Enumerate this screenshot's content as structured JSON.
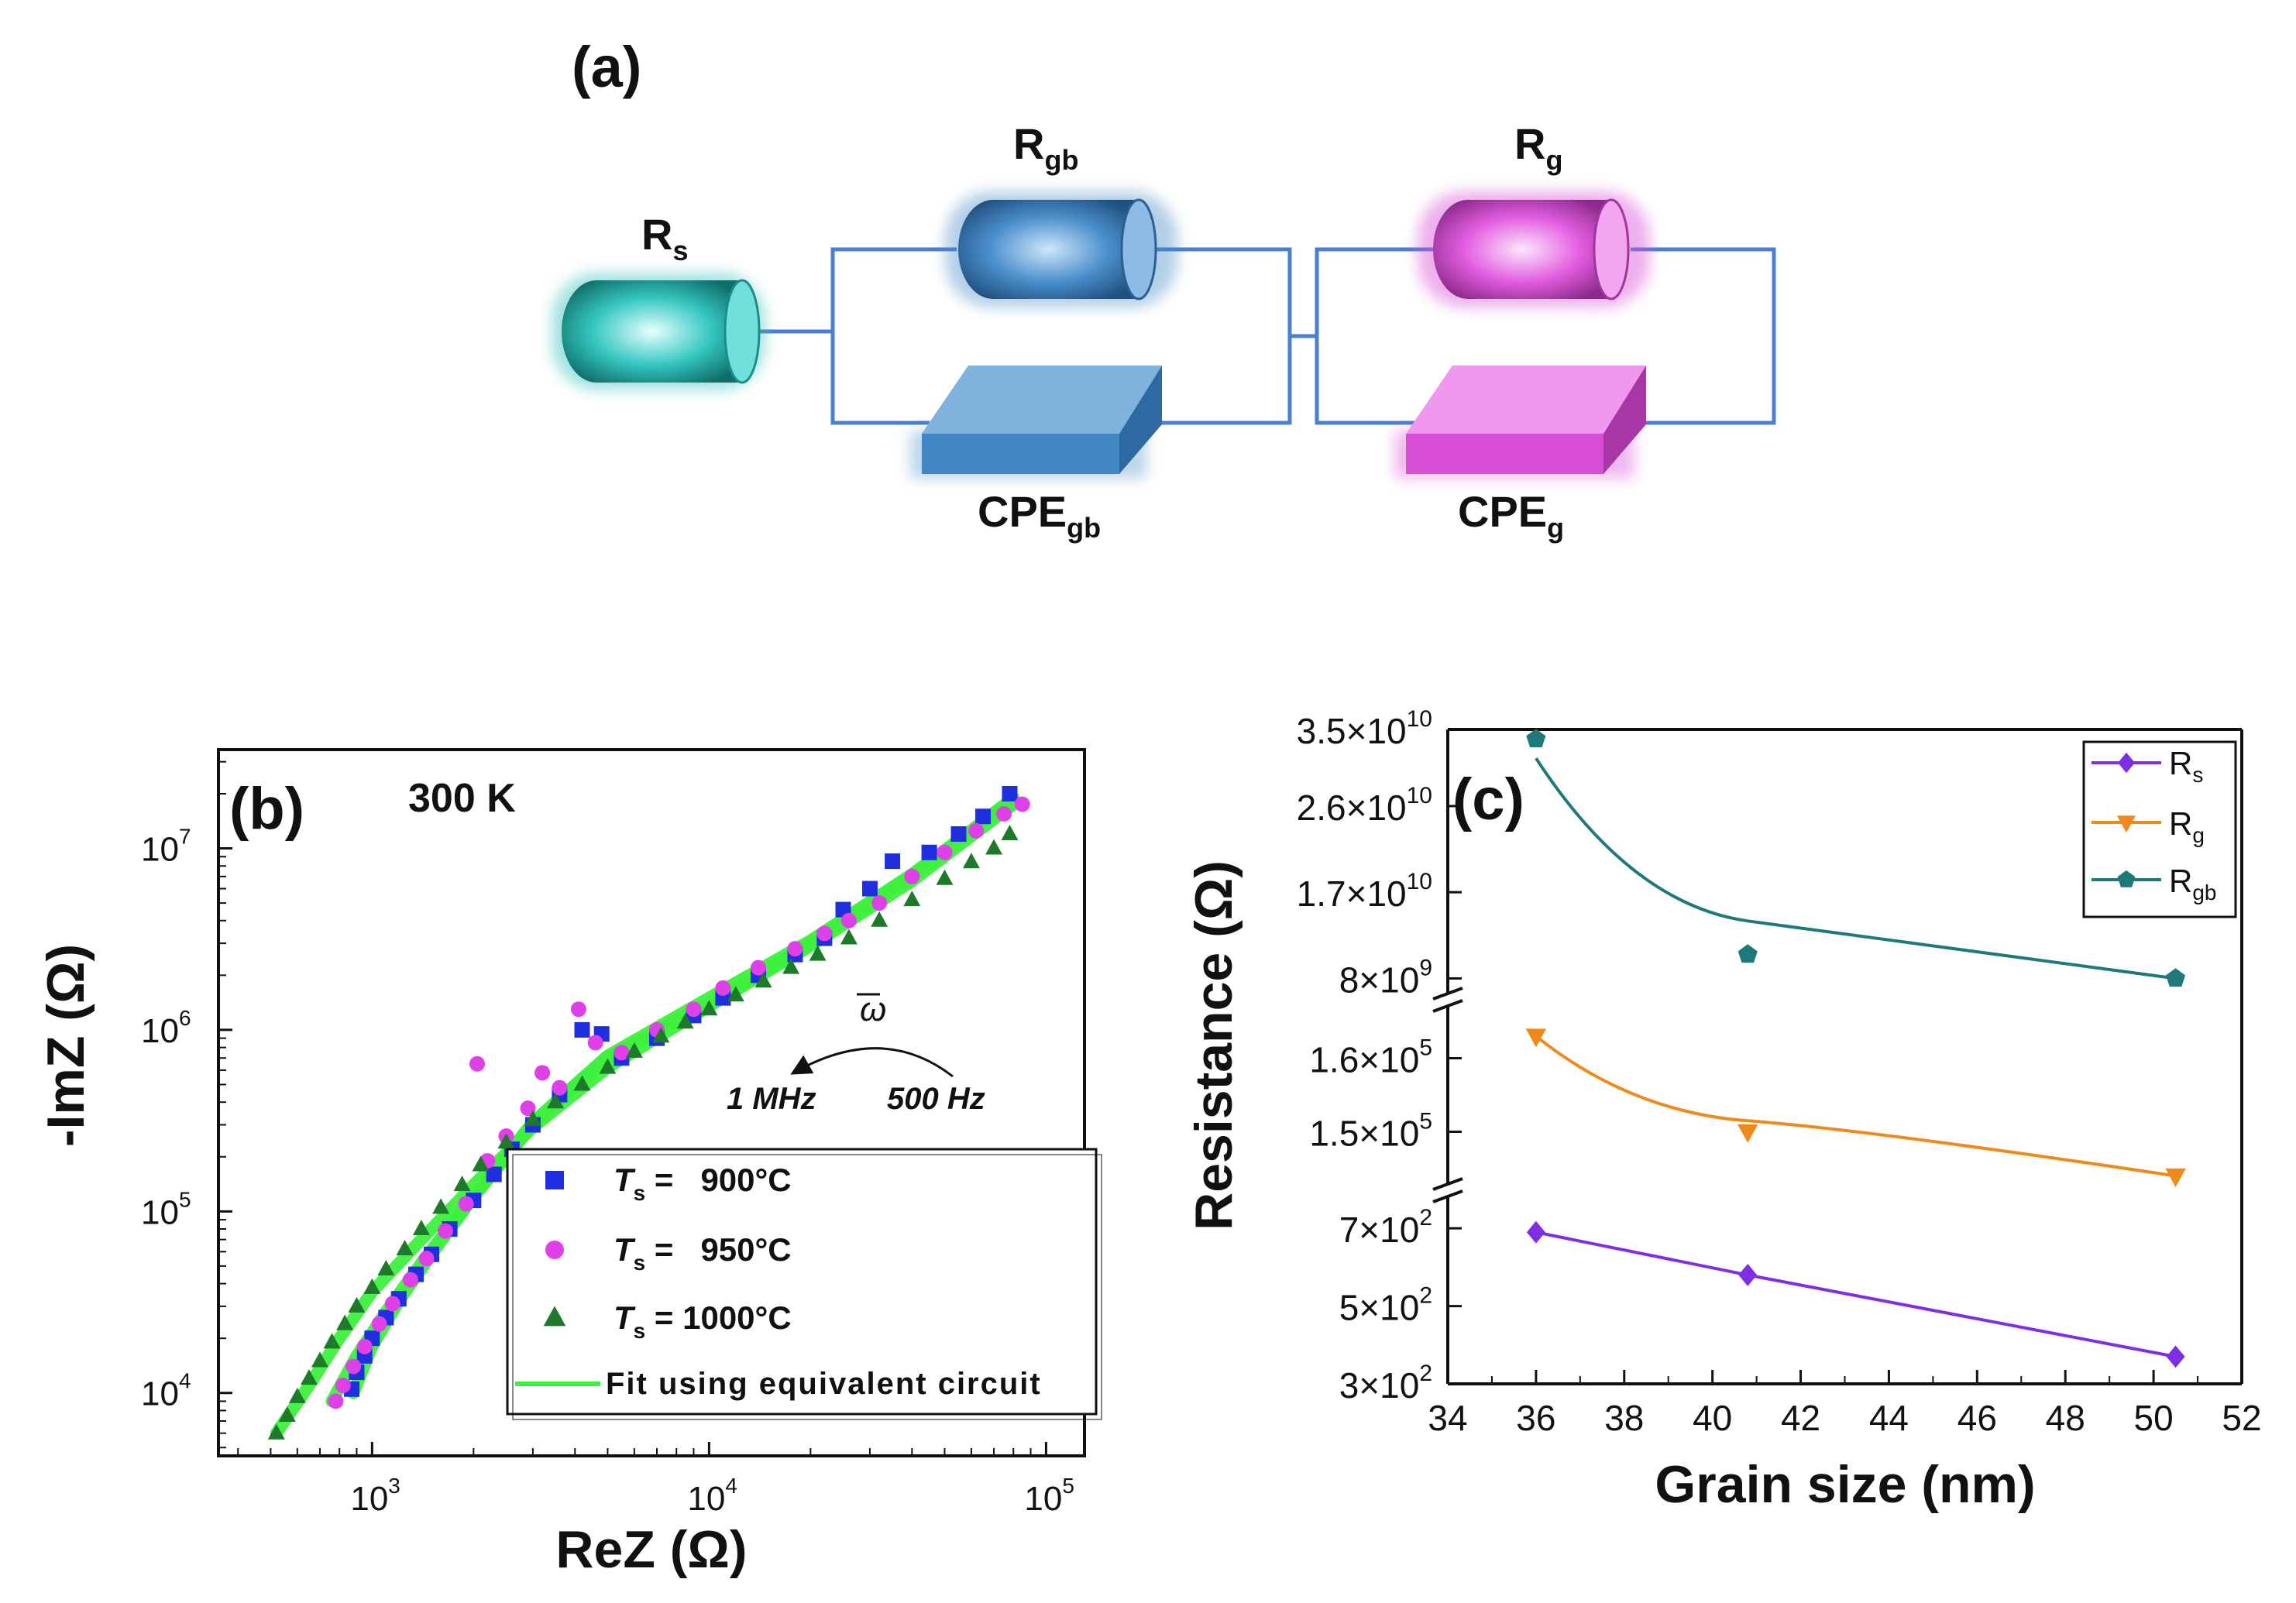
{
  "panel_a": {
    "label": "(a)",
    "components": {
      "rs": {
        "main": "R",
        "sub": "s"
      },
      "rgb": {
        "main": "R",
        "sub": "gb"
      },
      "rg": {
        "main": "R",
        "sub": "g"
      },
      "cpegb": {
        "main": "CPE",
        "sub": "gb"
      },
      "cpeg": {
        "main": "CPE",
        "sub": "g"
      }
    },
    "colors": {
      "rs": "#2fbfb8",
      "gb": "#3f86c2",
      "g": "#d84fd6",
      "wire": "#4a7fd0"
    }
  },
  "chart_data": [
    {
      "id": "b",
      "type": "scatter",
      "panel_label": "(b)",
      "annotation": "300 K",
      "xlabel": "ReZ (Ω)",
      "ylabel": "-ImZ (Ω)",
      "xscale": "log",
      "yscale": "log",
      "xlim": [
        350,
        130000
      ],
      "ylim": [
        4500,
        35000000
      ],
      "xticks": [
        {
          "value": 1000,
          "base": "10",
          "exp": "3"
        },
        {
          "value": 10000,
          "base": "10",
          "exp": "4"
        },
        {
          "value": 100000,
          "base": "10",
          "exp": "5"
        }
      ],
      "yticks": [
        {
          "value": 10000,
          "base": "10",
          "exp": "4"
        },
        {
          "value": 100000,
          "base": "10",
          "exp": "5"
        },
        {
          "value": 1000000,
          "base": "10",
          "exp": "6"
        },
        {
          "value": 10000000,
          "base": "10",
          "exp": "7"
        }
      ],
      "omega_annotation": {
        "symbol": "ω",
        "high": "1 MHz",
        "low": "500 Hz"
      },
      "legend": {
        "position": "bottom-right",
        "fit_label": "Fit using equivalent circuit"
      },
      "series": [
        {
          "name": "Ts = 900°C",
          "prefix": "T",
          "sub": "s",
          "suffix": " =   900°C",
          "marker": "square",
          "color": "#1f2fe0",
          "points": [
            [
              870,
              10500
            ],
            [
              900,
              13000
            ],
            [
              950,
              16000
            ],
            [
              1000,
              20000
            ],
            [
              1100,
              26000
            ],
            [
              1200,
              33000
            ],
            [
              1350,
              45000
            ],
            [
              1500,
              58000
            ],
            [
              1700,
              80000
            ],
            [
              2000,
              115000
            ],
            [
              2300,
              160000
            ],
            [
              2600,
              220000
            ],
            [
              3000,
              300000
            ],
            [
              3600,
              440000
            ],
            [
              4200,
              1000000
            ],
            [
              4800,
              950000
            ],
            [
              5500,
              700000
            ],
            [
              7000,
              900000
            ],
            [
              9000,
              1200000
            ],
            [
              11000,
              1500000
            ],
            [
              14000,
              2000000
            ],
            [
              18000,
              2600000
            ],
            [
              22000,
              3200000
            ],
            [
              25000,
              4600000
            ],
            [
              30000,
              6000000
            ],
            [
              35000,
              8500000
            ],
            [
              45000,
              9500000
            ],
            [
              55000,
              12000000
            ],
            [
              65000,
              15000000
            ],
            [
              78000,
              20000000
            ]
          ]
        },
        {
          "name": "Ts = 950°C",
          "prefix": "T",
          "sub": "s",
          "suffix": " =   950°C",
          "marker": "circle",
          "color": "#e040e8",
          "points": [
            [
              780,
              9000
            ],
            [
              820,
              11000
            ],
            [
              880,
              14000
            ],
            [
              950,
              18000
            ],
            [
              1050,
              24000
            ],
            [
              1150,
              31000
            ],
            [
              1300,
              42000
            ],
            [
              1450,
              55000
            ],
            [
              1650,
              78000
            ],
            [
              1900,
              110000
            ],
            [
              2050,
              650000
            ],
            [
              2200,
              190000
            ],
            [
              2500,
              260000
            ],
            [
              2900,
              370000
            ],
            [
              3200,
              580000
            ],
            [
              3600,
              480000
            ],
            [
              4100,
              1300000
            ],
            [
              4600,
              850000
            ],
            [
              5500,
              750000
            ],
            [
              7000,
              1000000
            ],
            [
              9000,
              1300000
            ],
            [
              11000,
              1700000
            ],
            [
              14000,
              2200000
            ],
            [
              18000,
              2800000
            ],
            [
              22000,
              3400000
            ],
            [
              26000,
              4000000
            ],
            [
              32000,
              5000000
            ],
            [
              40000,
              7000000
            ],
            [
              50000,
              9500000
            ],
            [
              62000,
              12500000
            ],
            [
              75000,
              15500000
            ],
            [
              85000,
              17500000
            ]
          ]
        },
        {
          "name": "Ts = 1000°C",
          "prefix": "T",
          "sub": "s",
          "suffix": " = 1000°C",
          "marker": "triangle",
          "color": "#1e7a2a",
          "points": [
            [
              520,
              6000
            ],
            [
              560,
              7500
            ],
            [
              600,
              9500
            ],
            [
              650,
              12000
            ],
            [
              700,
              15000
            ],
            [
              760,
              19000
            ],
            [
              830,
              24000
            ],
            [
              900,
              30000
            ],
            [
              1000,
              38000
            ],
            [
              1100,
              48000
            ],
            [
              1250,
              62000
            ],
            [
              1400,
              80000
            ],
            [
              1600,
              105000
            ],
            [
              1850,
              140000
            ],
            [
              2100,
              180000
            ],
            [
              2500,
              240000
            ],
            [
              3000,
              320000
            ],
            [
              3500,
              400000
            ],
            [
              4200,
              500000
            ],
            [
              5000,
              620000
            ],
            [
              6000,
              760000
            ],
            [
              7200,
              920000
            ],
            [
              8500,
              1100000
            ],
            [
              10000,
              1300000
            ],
            [
              12000,
              1550000
            ],
            [
              14500,
              1850000
            ],
            [
              17500,
              2200000
            ],
            [
              21000,
              2600000
            ],
            [
              26000,
              3200000
            ],
            [
              32000,
              4000000
            ],
            [
              40000,
              5200000
            ],
            [
              50000,
              6800000
            ],
            [
              60000,
              8400000
            ],
            [
              70000,
              10000000
            ],
            [
              78000,
              12000000
            ]
          ]
        }
      ],
      "fits": [
        {
          "series": "Ts = 900°C",
          "color": "#3df03d",
          "points": [
            [
              880,
              10000
            ],
            [
              1000,
              18000
            ],
            [
              1200,
              32000
            ],
            [
              1500,
              58000
            ],
            [
              2000,
              120000
            ],
            [
              3000,
              300000
            ],
            [
              5000,
              700000
            ],
            [
              10000,
              1400000
            ],
            [
              20000,
              3000000
            ],
            [
              40000,
              7000000
            ],
            [
              80000,
              19000000
            ]
          ]
        },
        {
          "series": "Ts = 950°C",
          "color": "#3df03d",
          "points": [
            [
              760,
              9000
            ],
            [
              900,
              16000
            ],
            [
              1100,
              28000
            ],
            [
              1400,
              52000
            ],
            [
              2000,
              120000
            ],
            [
              3000,
              310000
            ],
            [
              5000,
              720000
            ],
            [
              10000,
              1500000
            ],
            [
              20000,
              3100000
            ],
            [
              40000,
              7200000
            ],
            [
              80000,
              18500000
            ]
          ]
        },
        {
          "series": "Ts = 1000°C",
          "color": "#3df03d",
          "points": [
            [
              520,
              6000
            ],
            [
              650,
              11000
            ],
            [
              800,
              20000
            ],
            [
              1000,
              36000
            ],
            [
              1400,
              70000
            ],
            [
              2000,
              140000
            ],
            [
              3000,
              290000
            ],
            [
              5000,
              620000
            ],
            [
              10000,
              1350000
            ],
            [
              20000,
              2900000
            ],
            [
              40000,
              6600000
            ],
            [
              80000,
              17500000
            ]
          ]
        }
      ]
    },
    {
      "id": "c",
      "type": "line",
      "panel_label": "(c)",
      "xlabel": "Grain size (nm)",
      "ylabel": "Resistance (Ω)",
      "xlim": [
        34,
        52
      ],
      "xticks": [
        "34",
        "36",
        "38",
        "40",
        "42",
        "44",
        "46",
        "48",
        "50",
        "52"
      ],
      "y_axis_breaks": 2,
      "segments": [
        {
          "series": "Rgb",
          "range": [
            6500000000,
            34000000000
          ],
          "scale": "linear",
          "ticks": [
            {
              "value": 35000000000,
              "mant": "3.5×10",
              "exp": "10"
            },
            {
              "value": 26000000000,
              "mant": "2.6×10",
              "exp": "10"
            },
            {
              "value": 17000000000,
              "mant": "1.7×10",
              "exp": "10"
            },
            {
              "value": 8000000000,
              "mant": "8×10",
              "exp": "9"
            }
          ]
        },
        {
          "series": "Rg",
          "range": [
            143000,
            167000
          ],
          "scale": "linear",
          "ticks": [
            {
              "value": 160000,
              "mant": "1.6×10",
              "exp": "5"
            },
            {
              "value": 150000,
              "mant": "1.5×10",
              "exp": "5"
            }
          ]
        },
        {
          "series": "Rs",
          "range": [
            300,
            780
          ],
          "scale": "linear",
          "ticks": [
            {
              "value": 700,
              "mant": "7×10",
              "exp": "2"
            },
            {
              "value": 500,
              "mant": "5×10",
              "exp": "2"
            },
            {
              "value": 300,
              "mant": "3×10",
              "exp": "2"
            }
          ]
        }
      ],
      "legend": {
        "position": "top-right"
      },
      "series": [
        {
          "name": "Rs",
          "main": "R",
          "sub": "s",
          "marker": "diamond",
          "color": "#7f2ee6",
          "x": [
            36.0,
            40.8,
            50.5
          ],
          "y": [
            690,
            580,
            370
          ],
          "fit_y": [
            690,
            580,
            370
          ]
        },
        {
          "name": "Rg",
          "main": "R",
          "sub": "g",
          "marker": "triangle-down",
          "color": "#ef8a1a",
          "x": [
            36.0,
            40.8,
            50.5
          ],
          "y": [
            163000,
            150000,
            144000
          ],
          "fit_y": [
            163000,
            151500,
            144000
          ]
        },
        {
          "name": "Rgb",
          "main": "R",
          "sub": "gb",
          "marker": "pentagon",
          "color": "#1e7a7a",
          "x": [
            36.0,
            40.8,
            50.5
          ],
          "y": [
            33000000000,
            10500000000,
            8000000000
          ],
          "fit_y": [
            31000000000,
            14000000000,
            8000000000
          ]
        }
      ]
    }
  ]
}
